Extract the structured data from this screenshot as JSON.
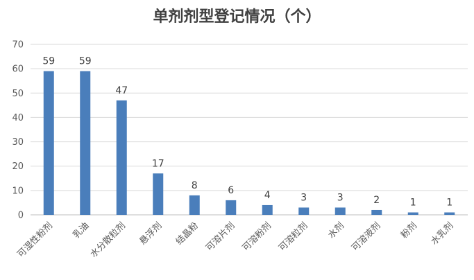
{
  "chart_data": {
    "type": "bar",
    "title": "单剂剂型登记情况（个）",
    "categories": [
      "可湿性粉剂",
      "乳油",
      "水分散粒剂",
      "悬浮剂",
      "结晶粉",
      "可溶片剂",
      "可溶粉剂",
      "可溶粒剂",
      "水剂",
      "可溶液剂",
      "粉剂",
      "水乳剂"
    ],
    "values": [
      59,
      59,
      47,
      17,
      8,
      6,
      4,
      3,
      3,
      2,
      1,
      1
    ],
    "ylim": [
      0,
      70
    ],
    "yticks": [
      0,
      10,
      20,
      30,
      40,
      50,
      60,
      70
    ],
    "xlabel": "",
    "ylabel": "",
    "grid": true,
    "bar_color": "#4a7ebb"
  }
}
